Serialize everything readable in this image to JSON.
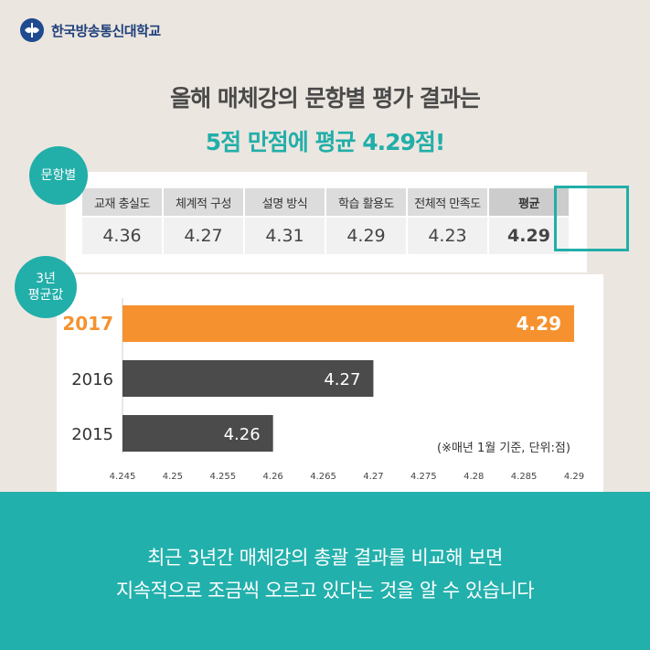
{
  "brand": {
    "name": "한국방송통신대학교",
    "icon": "university-emblem-icon"
  },
  "headline": {
    "line1": "올해 매체강의 문항별 평가 결과는",
    "line2": "5점 만점에 평균 4.29점!"
  },
  "labels": {
    "items": "문항별",
    "three_year_line1": "3년",
    "three_year_line2": "평균값"
  },
  "colors": {
    "teal": "#22aea9",
    "orange": "#f5922f",
    "dark_bar": "#4b4b4b"
  },
  "table": {
    "headers": [
      "교재 충실도",
      "체계적 구성",
      "설명 방식",
      "학습 활용도",
      "전체적 만족도",
      "평균"
    ],
    "values": [
      "4.36",
      "4.27",
      "4.31",
      "4.29",
      "4.23",
      "4.29"
    ]
  },
  "chart_data": {
    "type": "bar",
    "orientation": "horizontal",
    "categories": [
      "2017",
      "2016",
      "2015"
    ],
    "values": [
      4.29,
      4.27,
      4.26
    ],
    "value_labels": [
      "4.29",
      "4.27",
      "4.26"
    ],
    "xlim": [
      4.245,
      4.29
    ],
    "xticks": [
      "4.245",
      "4.25",
      "4.255",
      "4.26",
      "4.265",
      "4.27",
      "4.275",
      "4.28",
      "4.285",
      "4.29"
    ],
    "highlight": "2017",
    "note": "(※매년 1월 기준, 단위:점)",
    "grid": false
  },
  "footer": {
    "line1": "최근 3년간 매체강의 총괄 결과를 비교해 보면",
    "line2": "지속적으로 조금씩 오르고 있다는 것을 알 수 있습니다"
  }
}
